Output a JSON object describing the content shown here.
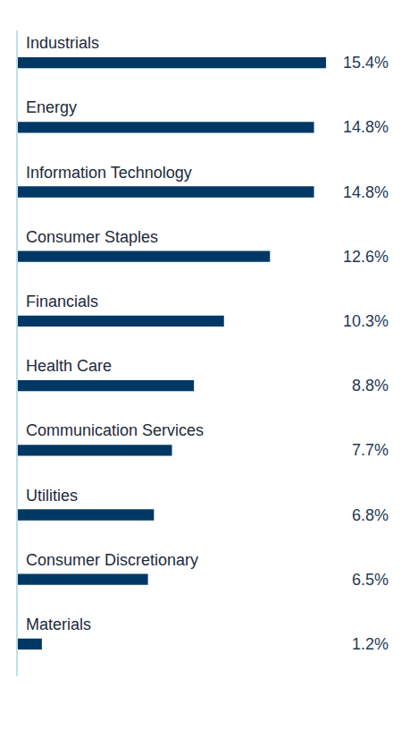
{
  "chart_data": {
    "type": "bar",
    "orientation": "horizontal",
    "categories": [
      "Industrials",
      "Energy",
      "Information Technology",
      "Consumer Staples",
      "Financials",
      "Health Care",
      "Communication Services",
      "Utilities",
      "Consumer Discretionary",
      "Materials"
    ],
    "values": [
      15.4,
      14.8,
      14.8,
      12.6,
      10.3,
      8.8,
      7.7,
      6.8,
      6.5,
      1.2
    ],
    "value_labels": [
      "15.4%",
      "14.8%",
      "14.8%",
      "12.6%",
      "10.3%",
      "8.8%",
      "7.7%",
      "6.8%",
      "6.5%",
      "1.2%"
    ],
    "color": "#003865",
    "xlim": [
      0,
      15.4
    ],
    "data_labels": true,
    "tick_labels": false,
    "grid": false
  }
}
